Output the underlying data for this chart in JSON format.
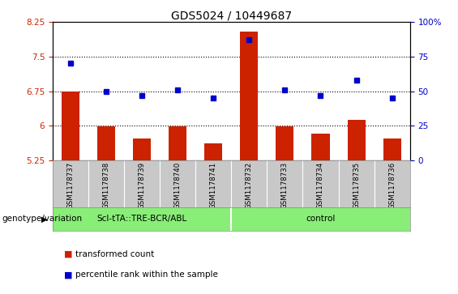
{
  "title": "GDS5024 / 10449687",
  "samples": [
    "GSM1178737",
    "GSM1178738",
    "GSM1178739",
    "GSM1178740",
    "GSM1178741",
    "GSM1178732",
    "GSM1178733",
    "GSM1178734",
    "GSM1178735",
    "GSM1178736"
  ],
  "transformed_count": [
    6.75,
    5.98,
    5.72,
    5.98,
    5.62,
    8.05,
    5.98,
    5.82,
    6.12,
    5.72
  ],
  "percentile_rank": [
    70,
    50,
    47,
    51,
    45,
    87,
    51,
    47,
    58,
    45
  ],
  "ylim_left": [
    5.25,
    8.25
  ],
  "ylim_right": [
    0,
    100
  ],
  "yticks_left": [
    5.25,
    6.0,
    6.75,
    7.5,
    8.25
  ],
  "yticks_right": [
    0,
    25,
    50,
    75,
    100
  ],
  "ytick_labels_left": [
    "5.25",
    "6",
    "6.75",
    "7.5",
    "8.25"
  ],
  "ytick_labels_right": [
    "0",
    "25",
    "50",
    "75",
    "100%"
  ],
  "hlines": [
    6.0,
    6.75,
    7.5
  ],
  "bar_color": "#cc2200",
  "dot_color": "#0000cc",
  "group1_label": "ScI-tTA::TRE-BCR/ABL",
  "group2_label": "control",
  "group1_count": 5,
  "group2_count": 5,
  "group_color": "#88ee77",
  "xlabel_area_label": "genotype/variation",
  "legend_bar_label": "transformed count",
  "legend_dot_label": "percentile rank within the sample",
  "bg_color": "#c8c8c8",
  "plot_bg_color": "#ffffff",
  "bar_width": 0.5,
  "title_fontsize": 10
}
